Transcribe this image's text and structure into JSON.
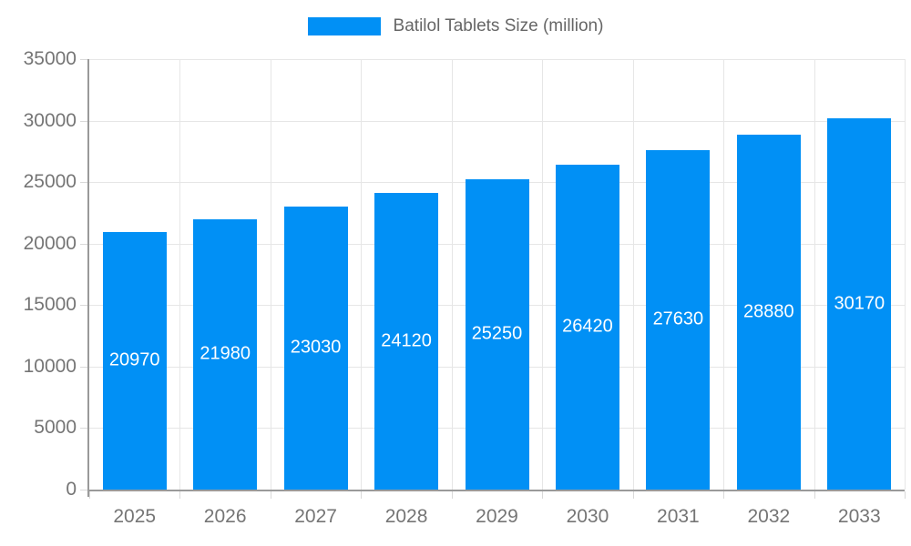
{
  "legend": {
    "label": "Batilol Tablets Size (million)",
    "swatch_color": "#0190f5"
  },
  "chart_data": {
    "type": "bar",
    "title": "",
    "series_name": "Batilol Tablets Size (million)",
    "categories": [
      "2025",
      "2026",
      "2027",
      "2028",
      "2029",
      "2030",
      "2031",
      "2032",
      "2033"
    ],
    "values": [
      20970,
      21980,
      23030,
      24120,
      25250,
      26420,
      27630,
      28880,
      30170
    ],
    "xlabel": "",
    "ylabel": "",
    "ylim": [
      0,
      35000
    ],
    "ytick_step": 5000,
    "yticks": [
      0,
      5000,
      10000,
      15000,
      20000,
      25000,
      30000,
      35000
    ],
    "grid": true,
    "legend_position": "top-center",
    "data_labels_inside_bars": true,
    "colors": {
      "bar": "#0190f5",
      "grid": "#e6e6e6",
      "axis": "#9a9a9a",
      "tick_label": "#757575",
      "legend_text": "#666666",
      "data_label": "#ffffff",
      "background": "#ffffff"
    }
  }
}
